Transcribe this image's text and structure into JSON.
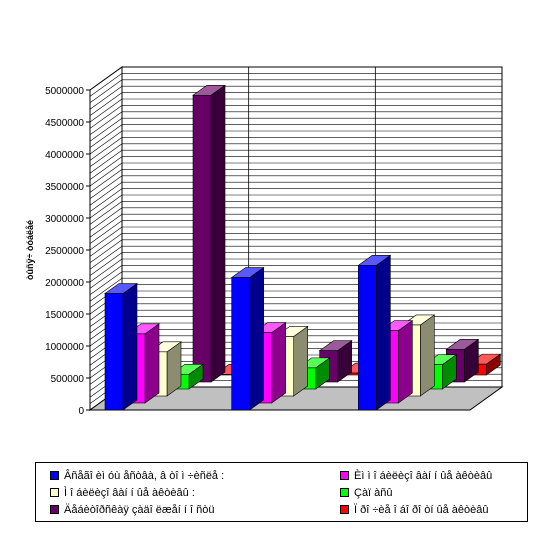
{
  "chart_data": {
    "type": "bar",
    "subtype": "3d-clustered-column",
    "title": "",
    "xlabel": "",
    "ylabel": "òûñÿ÷ òóáëåé",
    "ylim": [
      0,
      5000000
    ],
    "yticks": [
      0,
      500000,
      1000000,
      1500000,
      2000000,
      2500000,
      3000000,
      3500000,
      4000000,
      4500000,
      5000000
    ],
    "categories": [
      "",
      "",
      ""
    ],
    "grid": true,
    "legend_position": "bottom",
    "series": [
      {
        "name": "Âñåãî èì óù åñòâà, â òî ì ÷èñëå :",
        "color": "#0000ff",
        "values": [
          1820000,
          2070000,
          2260000
        ]
      },
      {
        "name": "Èì ì î áèëèçî âàí í ûå àêòèâû",
        "color": "#ff00ff",
        "values": [
          1080000,
          1100000,
          1130000
        ]
      },
      {
        "name": "Ì î áèëèçî âàí í ûå àêòèâû :",
        "color": "#ffffcc",
        "values": [
          690000,
          930000,
          1110000
        ]
      },
      {
        "name": "Çàï àñû",
        "color": "#00ff00",
        "values": [
          230000,
          330000,
          380000
        ]
      },
      {
        "name": "Äåáèòîðñêàÿ çàäî ëæåí í î ñòü",
        "color": "#660066",
        "values": [
          4480000,
          490000,
          510000
        ]
      },
      {
        "name": "Ï ðî ÷èå î áî ðî òí ûå àêòèâû",
        "color": "#ff0000",
        "values": [
          10000,
          30000,
          170000
        ]
      }
    ]
  }
}
